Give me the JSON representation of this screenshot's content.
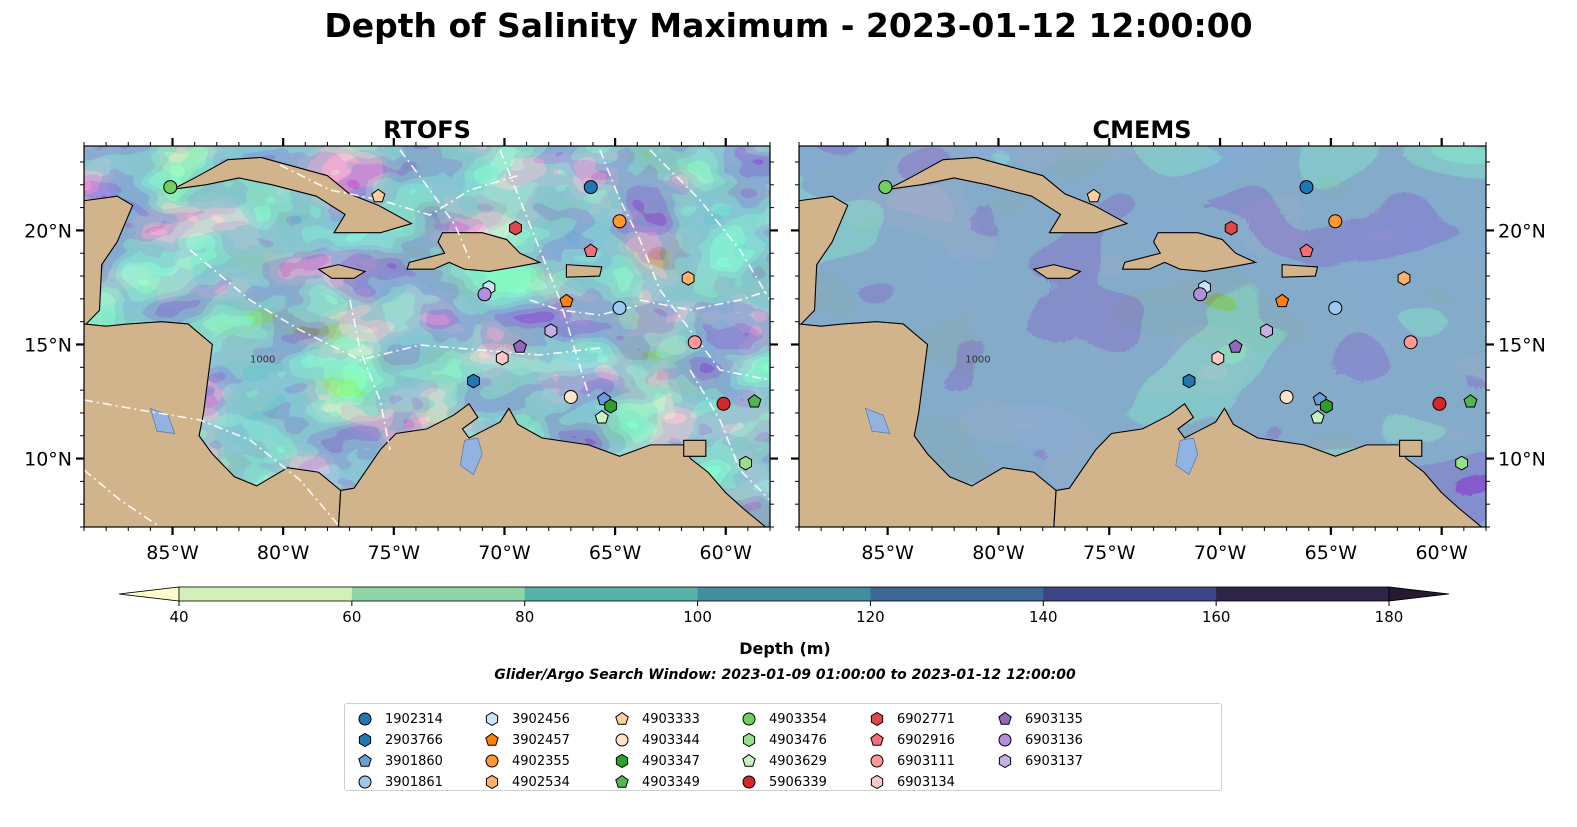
{
  "figure": {
    "title": "Depth of Salinity Maximum - 2023-01-12 12:00:00",
    "panels": [
      {
        "id": "rtofs",
        "title": "RTOFS"
      },
      {
        "id": "cmems",
        "title": "CMEMS"
      }
    ],
    "lon_ticks": [
      "85°W",
      "80°W",
      "75°W",
      "70°W",
      "65°W",
      "60°W"
    ],
    "lat_ticks": [
      "20°N",
      "15°N",
      "10°N"
    ],
    "lon_values": [
      -85,
      -80,
      -75,
      -70,
      -65,
      -60
    ],
    "lat_values": [
      20,
      15,
      10
    ],
    "extent": {
      "lon_min": -89,
      "lon_max": -58,
      "lat_min": 7,
      "lat_max": 23.7
    },
    "contour_label": "1000"
  },
  "colorbar": {
    "label": "Depth (m)",
    "ticks": [
      "40",
      "60",
      "80",
      "100",
      "120",
      "140",
      "160",
      "180"
    ],
    "colors": [
      "#fdfccd",
      "#d4f0b9",
      "#8fd5a5",
      "#56b1a6",
      "#428e9e",
      "#3c6896",
      "#3e4585",
      "#2f2548",
      "#261a2e"
    ],
    "extend": "both"
  },
  "search_window": "Glider/Argo Search Window: 2023-01-09 01:00:00 to 2023-01-12 12:00:00",
  "land_color": "#d2b48c",
  "lake_color": "#92b3e2",
  "legend": [
    {
      "id": "1902314",
      "marker": "circle",
      "color": "#1f77b4"
    },
    {
      "id": "2903766",
      "marker": "hexagon",
      "color": "#1f77b4"
    },
    {
      "id": "3901860",
      "marker": "pentagon",
      "color": "#6a9ed6"
    },
    {
      "id": "3901861",
      "marker": "circle",
      "color": "#9ec9ee"
    },
    {
      "id": "3902456",
      "marker": "hexagon",
      "color": "#c6e5f7"
    },
    {
      "id": "3902457",
      "marker": "pentagon",
      "color": "#ff7f0e"
    },
    {
      "id": "4902355",
      "marker": "circle",
      "color": "#ff9830"
    },
    {
      "id": "4902534",
      "marker": "hexagon",
      "color": "#ffb06b"
    },
    {
      "id": "4903333",
      "marker": "pentagon",
      "color": "#ffcf9e"
    },
    {
      "id": "4903344",
      "marker": "circle",
      "color": "#ffe3c8"
    },
    {
      "id": "4903347",
      "marker": "hexagon",
      "color": "#2ca02c"
    },
    {
      "id": "4903349",
      "marker": "pentagon",
      "color": "#52b552"
    },
    {
      "id": "4903354",
      "marker": "circle",
      "color": "#6fcf5f"
    },
    {
      "id": "4903476",
      "marker": "hexagon",
      "color": "#98df8a"
    },
    {
      "id": "4903629",
      "marker": "pentagon",
      "color": "#c9f0c0"
    },
    {
      "id": "5906339",
      "marker": "circle",
      "color": "#d62728"
    },
    {
      "id": "6902771",
      "marker": "hexagon",
      "color": "#e0474a"
    },
    {
      "id": "6902916",
      "marker": "pentagon",
      "color": "#f07075"
    },
    {
      "id": "6903111",
      "marker": "circle",
      "color": "#ff9896"
    },
    {
      "id": "6903134",
      "marker": "hexagon",
      "color": "#ffc7c6"
    },
    {
      "id": "6903135",
      "marker": "pentagon",
      "color": "#9467bd"
    },
    {
      "id": "6903136",
      "marker": "circle",
      "color": "#b28ede"
    },
    {
      "id": "6903137",
      "marker": "hexagon",
      "color": "#c5b0e5"
    }
  ],
  "floats": [
    {
      "id": "4903354",
      "lon": -85.1,
      "lat": 21.9
    },
    {
      "id": "4903333",
      "lon": -75.7,
      "lat": 21.5
    },
    {
      "id": "1902314",
      "lon": -66.1,
      "lat": 21.9
    },
    {
      "id": "4902355",
      "lon": -64.8,
      "lat": 20.4
    },
    {
      "id": "6902771",
      "lon": -69.5,
      "lat": 20.1
    },
    {
      "id": "6902916",
      "lon": -66.1,
      "lat": 19.1
    },
    {
      "id": "4902534",
      "lon": -61.7,
      "lat": 17.9
    },
    {
      "id": "3902456",
      "lon": -70.7,
      "lat": 17.5
    },
    {
      "id": "6903136",
      "lon": -70.9,
      "lat": 17.2
    },
    {
      "id": "3902457",
      "lon": -67.2,
      "lat": 16.9
    },
    {
      "id": "3901861",
      "lon": -64.8,
      "lat": 16.6
    },
    {
      "id": "6903137",
      "lon": -67.9,
      "lat": 15.6
    },
    {
      "id": "6903111",
      "lon": -61.4,
      "lat": 15.1
    },
    {
      "id": "6903135",
      "lon": -69.3,
      "lat": 14.9
    },
    {
      "id": "6903134",
      "lon": -70.1,
      "lat": 14.4
    },
    {
      "id": "2903766",
      "lon": -71.4,
      "lat": 13.4
    },
    {
      "id": "4903344",
      "lon": -67.0,
      "lat": 12.7
    },
    {
      "id": "3901860",
      "lon": -65.5,
      "lat": 12.6
    },
    {
      "id": "4903347",
      "lon": -65.2,
      "lat": 12.3
    },
    {
      "id": "4903629",
      "lon": -65.6,
      "lat": 11.8
    },
    {
      "id": "5906339",
      "lon": -60.1,
      "lat": 12.4
    },
    {
      "id": "4903349",
      "lon": -58.7,
      "lat": 12.5
    },
    {
      "id": "4903476",
      "lon": -59.1,
      "lat": 9.8
    }
  ]
}
